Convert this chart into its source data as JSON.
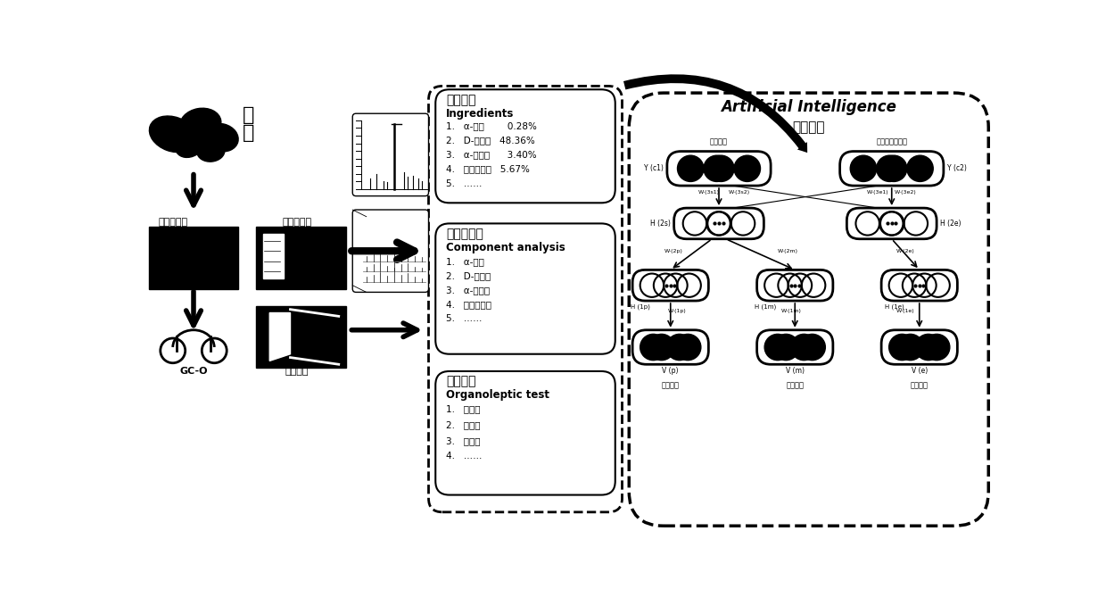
{
  "bg_color": "#ffffff",
  "fig_width": 12.4,
  "fig_height": 6.88,
  "chenpi_label": "陈\n皮",
  "solid_phase_label": "固相微萩取",
  "gcms_label": "气质联用仪",
  "gco_label": "GC-O",
  "odor_label": "气味评价",
  "box1_title": "相对含量",
  "box1_sub": "Ingredients",
  "box1_items": [
    "1.   α-蘸烯        0.28%",
    "2.   D-柠樼烯   48.36%",
    "3.   α-法尼烯      3.40%",
    "4.   十六酸甲酰   5.67%",
    "5.   ……"
  ],
  "box2_title": "组成分分析",
  "box2_sub": "Component analysis",
  "box2_items": [
    "1.   α-蘸烯",
    "2.   D-柠樼烯",
    "3.   α-法尼烯",
    "4.   十六酸甲鄐",
    "5.   ……"
  ],
  "box3_title": "感官评定",
  "box3_sub": "Organoleptic test",
  "box3_items": [
    "1.   木质香",
    "2.   柠樼香",
    "3.   野菊香",
    "4.   ……"
  ],
  "ai_line1": "Artificial Intelligence",
  "ai_line2": "人工智能",
  "flavor_type": "风味类型",
  "flavor_intens": "风味强度、细层",
  "image_data": "图像数据",
  "smell_data": "居感数据",
  "taste_data": "味觉数据"
}
